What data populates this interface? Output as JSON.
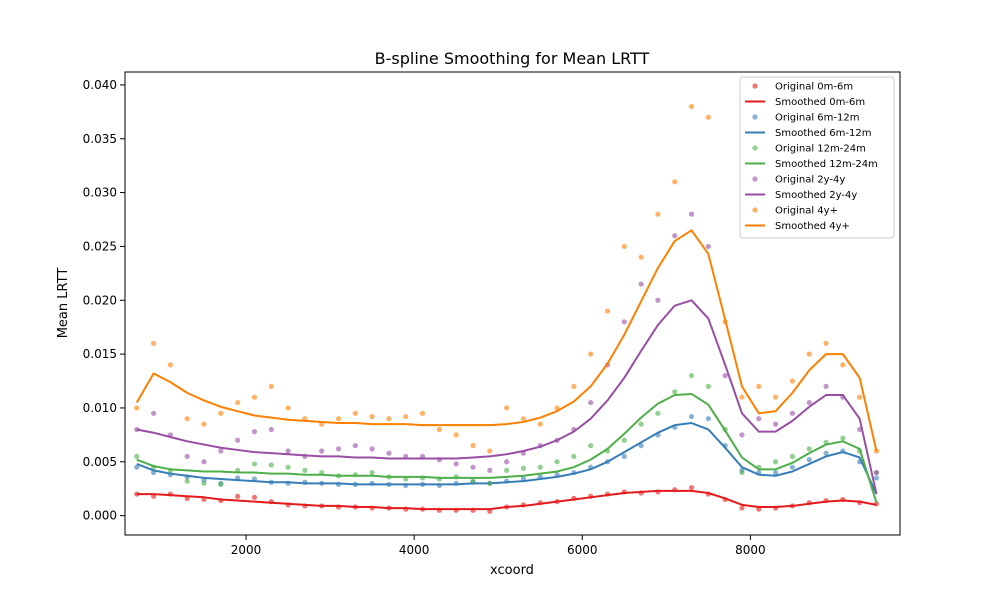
{
  "chart_data": {
    "type": "scatter",
    "title": "B-spline Smoothing for Mean LRTT",
    "xlabel": "xcoord",
    "ylabel": "Mean LRTT",
    "xlim": [
      560,
      9780
    ],
    "ylim": [
      -0.0018,
      0.0412
    ],
    "xticks": [
      2000,
      4000,
      6000,
      8000
    ],
    "xtick_labels": [
      "2000",
      "4000",
      "6000",
      "8000"
    ],
    "yticks": [
      0.0,
      0.005,
      0.01,
      0.015,
      0.02,
      0.025,
      0.03,
      0.035,
      0.04
    ],
    "ytick_labels": [
      "0.000",
      "0.005",
      "0.010",
      "0.015",
      "0.020",
      "0.025",
      "0.030",
      "0.035",
      "0.040"
    ],
    "grid": false,
    "legend_position": "top-right",
    "x": [
      700,
      900,
      1100,
      1300,
      1500,
      1700,
      1900,
      2100,
      2300,
      2500,
      2700,
      2900,
      3100,
      3300,
      3500,
      3700,
      3900,
      4100,
      4300,
      4500,
      4700,
      4900,
      5100,
      5300,
      5500,
      5700,
      5900,
      6100,
      6300,
      6500,
      6700,
      6900,
      7100,
      7300,
      7500,
      7700,
      7900,
      8100,
      8300,
      8500,
      8700,
      8900,
      9100,
      9300,
      9500
    ],
    "series": [
      {
        "name": "Original 0m-6m",
        "kind": "points",
        "color": "#e41a1c",
        "values": [
          0.002,
          0.0018,
          0.002,
          0.0016,
          0.0015,
          0.0014,
          0.0018,
          0.0017,
          0.0013,
          0.001,
          0.0009,
          0.0009,
          0.0008,
          0.0008,
          0.0007,
          0.0007,
          0.0006,
          0.0006,
          0.0005,
          0.0005,
          0.0005,
          0.0004,
          0.0008,
          0.001,
          0.0012,
          0.0013,
          0.0016,
          0.0018,
          0.002,
          0.0022,
          0.0021,
          0.0022,
          0.0024,
          0.0026,
          0.002,
          0.0015,
          0.0007,
          0.0006,
          0.0007,
          0.0009,
          0.0012,
          0.0014,
          0.0015,
          0.0012,
          0.0011
        ]
      },
      {
        "name": "Smoothed 0m-6m",
        "kind": "line",
        "color": "#e41a1c",
        "values": [
          0.002,
          0.002,
          0.0019,
          0.0018,
          0.0017,
          0.0015,
          0.0014,
          0.0013,
          0.0012,
          0.0011,
          0.001,
          0.0009,
          0.0009,
          0.0008,
          0.0008,
          0.0007,
          0.0007,
          0.0006,
          0.0006,
          0.0006,
          0.0006,
          0.0006,
          0.0008,
          0.0009,
          0.0011,
          0.0013,
          0.0015,
          0.0017,
          0.0019,
          0.0021,
          0.0022,
          0.0023,
          0.0023,
          0.0023,
          0.0021,
          0.0016,
          0.001,
          0.0008,
          0.0008,
          0.0009,
          0.0011,
          0.0013,
          0.0014,
          0.0013,
          0.001
        ]
      },
      {
        "name": "Original 6m-12m",
        "kind": "points",
        "color": "#377eb8",
        "values": [
          0.0045,
          0.004,
          0.0038,
          0.0036,
          0.0033,
          0.003,
          0.0035,
          0.0034,
          0.0031,
          0.003,
          0.0031,
          0.003,
          0.0029,
          0.0029,
          0.003,
          0.0029,
          0.0028,
          0.0029,
          0.0028,
          0.003,
          0.0031,
          0.003,
          0.0032,
          0.0034,
          0.0036,
          0.0038,
          0.004,
          0.0045,
          0.005,
          0.0055,
          0.0065,
          0.0075,
          0.0082,
          0.0092,
          0.009,
          0.0065,
          0.0042,
          0.004,
          0.004,
          0.0045,
          0.0052,
          0.0058,
          0.006,
          0.005,
          0.0035
        ]
      },
      {
        "name": "Smoothed 6m-12m",
        "kind": "line",
        "color": "#377eb8",
        "values": [
          0.0048,
          0.0042,
          0.0039,
          0.0037,
          0.0035,
          0.0034,
          0.0033,
          0.0032,
          0.0031,
          0.0031,
          0.003,
          0.003,
          0.003,
          0.0029,
          0.0029,
          0.0029,
          0.0029,
          0.0029,
          0.0029,
          0.0029,
          0.003,
          0.003,
          0.0031,
          0.0032,
          0.0034,
          0.0036,
          0.0039,
          0.0043,
          0.005,
          0.0059,
          0.0068,
          0.0077,
          0.0084,
          0.0086,
          0.008,
          0.0063,
          0.0045,
          0.0038,
          0.0037,
          0.0041,
          0.0048,
          0.0055,
          0.0059,
          0.0054,
          0.002
        ]
      },
      {
        "name": "Original 12m-24m",
        "kind": "points",
        "color": "#4daf4a",
        "values": [
          0.0055,
          0.0045,
          0.0042,
          0.0032,
          0.003,
          0.0029,
          0.0042,
          0.0048,
          0.0047,
          0.0045,
          0.0042,
          0.004,
          0.0037,
          0.0038,
          0.004,
          0.0036,
          0.0034,
          0.0035,
          0.0034,
          0.0036,
          0.0032,
          0.003,
          0.0042,
          0.0044,
          0.0045,
          0.005,
          0.0055,
          0.0065,
          0.006,
          0.007,
          0.0085,
          0.0095,
          0.0115,
          0.013,
          0.012,
          0.008,
          0.004,
          0.0045,
          0.005,
          0.0055,
          0.0062,
          0.0068,
          0.0072,
          0.006,
          0.004
        ]
      },
      {
        "name": "Smoothed 12m-24m",
        "kind": "line",
        "color": "#4daf4a",
        "values": [
          0.0052,
          0.0046,
          0.0043,
          0.0042,
          0.0041,
          0.0041,
          0.004,
          0.004,
          0.0039,
          0.0039,
          0.0038,
          0.0038,
          0.0037,
          0.0037,
          0.0037,
          0.0036,
          0.0036,
          0.0036,
          0.0035,
          0.0035,
          0.0035,
          0.0035,
          0.0036,
          0.0037,
          0.0039,
          0.0041,
          0.0045,
          0.0052,
          0.0062,
          0.0076,
          0.0091,
          0.0104,
          0.0112,
          0.0113,
          0.0103,
          0.0079,
          0.0054,
          0.0043,
          0.0043,
          0.0049,
          0.0058,
          0.0066,
          0.0069,
          0.0062,
          0.0012
        ]
      },
      {
        "name": "Original 2y-4y",
        "kind": "points",
        "color": "#984ea3",
        "values": [
          0.008,
          0.0095,
          0.0075,
          0.0055,
          0.005,
          0.006,
          0.007,
          0.0078,
          0.008,
          0.006,
          0.0055,
          0.006,
          0.0062,
          0.0065,
          0.0062,
          0.0058,
          0.0055,
          0.0055,
          0.0052,
          0.0048,
          0.0045,
          0.0042,
          0.005,
          0.0058,
          0.0065,
          0.007,
          0.008,
          0.0105,
          0.014,
          0.018,
          0.0215,
          0.02,
          0.026,
          0.028,
          0.025,
          0.013,
          0.0075,
          0.009,
          0.0085,
          0.0095,
          0.0105,
          0.012,
          0.011,
          0.008,
          0.004
        ]
      },
      {
        "name": "Smoothed 2y-4y",
        "kind": "line",
        "color": "#984ea3",
        "values": [
          0.008,
          0.0077,
          0.0073,
          0.0069,
          0.0066,
          0.0063,
          0.0061,
          0.0059,
          0.0058,
          0.0057,
          0.0056,
          0.0055,
          0.0055,
          0.0054,
          0.0054,
          0.0053,
          0.0053,
          0.0053,
          0.0053,
          0.0053,
          0.0054,
          0.0055,
          0.0057,
          0.006,
          0.0064,
          0.007,
          0.0078,
          0.009,
          0.0107,
          0.0128,
          0.0153,
          0.0177,
          0.0195,
          0.02,
          0.0183,
          0.014,
          0.0095,
          0.0078,
          0.0078,
          0.0088,
          0.0101,
          0.0112,
          0.0112,
          0.009,
          0.002
        ]
      },
      {
        "name": "Original 4y+",
        "kind": "points",
        "color": "#ff7f00",
        "values": [
          0.01,
          0.016,
          0.014,
          0.009,
          0.0085,
          0.0095,
          0.0105,
          0.011,
          0.012,
          0.01,
          0.009,
          0.0085,
          0.009,
          0.0095,
          0.0092,
          0.009,
          0.0092,
          0.0095,
          0.008,
          0.0075,
          0.0065,
          0.006,
          0.01,
          0.009,
          0.0085,
          0.01,
          0.012,
          0.015,
          0.019,
          0.025,
          0.024,
          0.028,
          0.031,
          0.038,
          0.037,
          0.018,
          0.011,
          0.012,
          0.011,
          0.0125,
          0.015,
          0.016,
          0.014,
          0.011,
          0.006
        ]
      },
      {
        "name": "Smoothed 4y+",
        "kind": "line",
        "color": "#ff7f00",
        "values": [
          0.0105,
          0.0132,
          0.0124,
          0.0114,
          0.0107,
          0.0101,
          0.0097,
          0.0093,
          0.0091,
          0.0089,
          0.0088,
          0.0087,
          0.0086,
          0.0086,
          0.0085,
          0.0085,
          0.0085,
          0.0084,
          0.0084,
          0.0084,
          0.0084,
          0.0084,
          0.0085,
          0.0087,
          0.0091,
          0.0097,
          0.0106,
          0.012,
          0.0141,
          0.0168,
          0.0199,
          0.023,
          0.0255,
          0.0265,
          0.0243,
          0.0182,
          0.012,
          0.0095,
          0.0097,
          0.0114,
          0.0135,
          0.015,
          0.015,
          0.0128,
          0.006
        ]
      }
    ]
  }
}
